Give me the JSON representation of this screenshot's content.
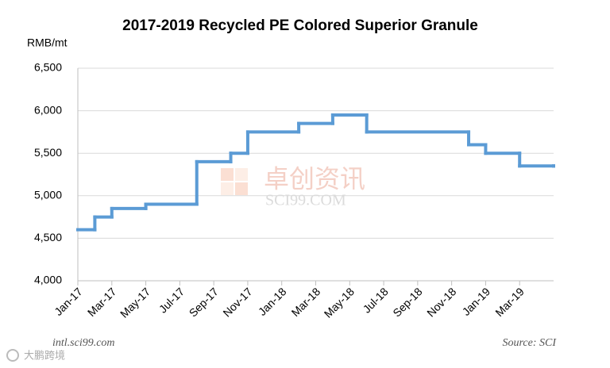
{
  "chart_data": {
    "type": "line",
    "step": "post",
    "title": "2017-2019 Recycled PE Colored Superior Granule",
    "y_label": "RMB/mt",
    "watermark": "卓创资讯",
    "watermark_sub": "SCI99.COM",
    "footer_left": "intl.sci99.com",
    "footer_right": "Source: SCI",
    "corner_logo": "大鹏跨境",
    "x": [
      "2017-01",
      "2017-02",
      "2017-03",
      "2017-05",
      "2017-08",
      "2017-10",
      "2017-11",
      "2018-02",
      "2018-04",
      "2018-06",
      "2018-12",
      "2019-01",
      "2019-03",
      "2019-05"
    ],
    "series": [
      {
        "name": "Recycled PE Colored Superior Granule",
        "color": "#5b9bd5",
        "values": [
          4600,
          4750,
          4850,
          4900,
          5400,
          5500,
          5750,
          5850,
          5950,
          5750,
          5600,
          5500,
          5350,
          5350
        ]
      }
    ],
    "xlim": [
      "2017-01",
      "2019-05"
    ],
    "xticks": [
      {
        "value": "2017-01",
        "label": "Jan-17"
      },
      {
        "value": "2017-03",
        "label": "Mar-17"
      },
      {
        "value": "2017-05",
        "label": "May-17"
      },
      {
        "value": "2017-07",
        "label": "Jul-17"
      },
      {
        "value": "2017-09",
        "label": "Sep-17"
      },
      {
        "value": "2017-11",
        "label": "Nov-17"
      },
      {
        "value": "2018-01",
        "label": "Jan-18"
      },
      {
        "value": "2018-03",
        "label": "Mar-18"
      },
      {
        "value": "2018-05",
        "label": "May-18"
      },
      {
        "value": "2018-07",
        "label": "Jul-18"
      },
      {
        "value": "2018-09",
        "label": "Sep-18"
      },
      {
        "value": "2018-11",
        "label": "Nov-18"
      },
      {
        "value": "2019-01",
        "label": "Jan-19"
      },
      {
        "value": "2019-03",
        "label": "Mar-19"
      }
    ],
    "ylim": [
      4000,
      6500
    ],
    "yticks": [
      {
        "value": 4000,
        "label": "4,000"
      },
      {
        "value": 4500,
        "label": "4,500"
      },
      {
        "value": 5000,
        "label": "5,000"
      },
      {
        "value": 5500,
        "label": "5,500"
      },
      {
        "value": 6000,
        "label": "6,000"
      },
      {
        "value": 6500,
        "label": "6,500"
      }
    ],
    "grid": true
  }
}
